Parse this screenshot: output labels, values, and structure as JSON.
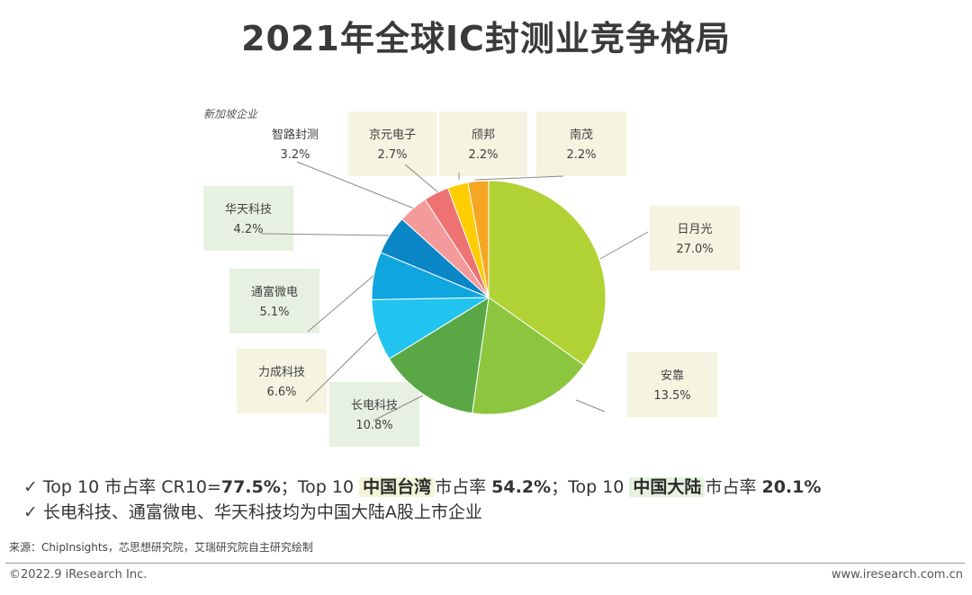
{
  "title": "2021年全球IC封测业竞争格局",
  "top_note": "新加坡企业",
  "chart_data": {
    "type": "pie",
    "title": "2021年全球IC封测业竞争格局",
    "slices": [
      {
        "label": "日月光",
        "value": 27.0,
        "value_text": "27.0%",
        "color": "#b1d234"
      },
      {
        "label": "安靠",
        "value": 13.5,
        "value_text": "13.5%",
        "color": "#8cc63f"
      },
      {
        "label": "长电科技",
        "value": 10.8,
        "value_text": "10.8%",
        "color": "#5aa845"
      },
      {
        "label": "力成科技",
        "value": 6.6,
        "value_text": "6.6%",
        "color": "#21c4ee"
      },
      {
        "label": "通富微电",
        "value": 5.1,
        "value_text": "5.1%",
        "color": "#0fa5de"
      },
      {
        "label": "华天科技",
        "value": 4.2,
        "value_text": "4.2%",
        "color": "#0a86c6"
      },
      {
        "label": "智路封测",
        "value": 3.2,
        "value_text": "3.2%",
        "color": "#f59a9a"
      },
      {
        "label": "京元电子",
        "value": 2.7,
        "value_text": "2.7%",
        "color": "#ef7272"
      },
      {
        "label": "颀邦",
        "value": 2.2,
        "value_text": "2.2%",
        "color": "#ffcc00"
      },
      {
        "label": "南茂",
        "value": 2.2,
        "value_text": "2.2%",
        "color": "#f5a623"
      }
    ]
  },
  "bullets": {
    "line1": {
      "p1": "Top 10 市占率 CR10=",
      "v1": "77.5%",
      "p2": "；Top 10 ",
      "h1": "中国台湾",
      "p3": "市占率 ",
      "v2": "54.2%",
      "p4": "；Top 10 ",
      "h2": "中国大陆",
      "p5": "市占率 ",
      "v3": "20.1%"
    },
    "line2": "长电科技、通富微电、华天科技均为中国大陆A股上市企业"
  },
  "source": "来源：ChipInsights，芯思想研究院，艾瑞研究院自主研究绘制",
  "copyright": "©2022.9 iResearch Inc.",
  "website": "www.iresearch.com.cn",
  "colors": {
    "box_yellow": "#f4f4e0",
    "box_green": "#e7f1e1",
    "leader": "#8a8a8a"
  }
}
